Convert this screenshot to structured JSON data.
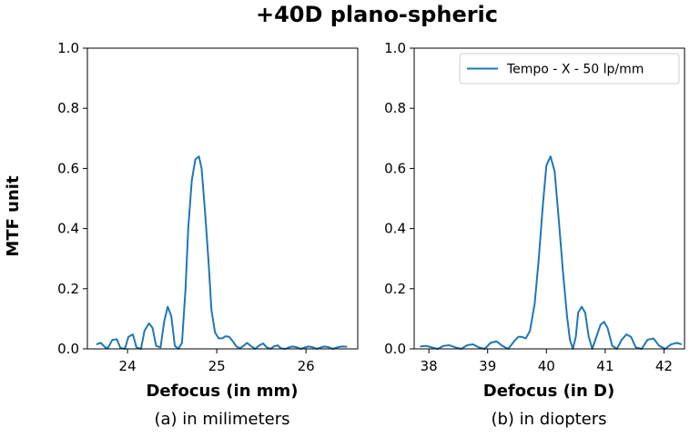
{
  "title": "+40D plano-spheric",
  "shared_ylabel": "MTF unit",
  "legend_label": "Tempo - X - 50 lp/mm",
  "series_color": "#1f77b4",
  "chart_data": [
    {
      "type": "line",
      "caption": "(a) in milimeters",
      "xlabel": "Defocus (in mm)",
      "ylabel": "MTF unit",
      "xlim": [
        23.55,
        26.58
      ],
      "ylim": [
        0,
        1
      ],
      "xticks": [
        24,
        25,
        26
      ],
      "yticks": [
        0.0,
        0.2,
        0.4,
        0.6,
        0.8,
        1.0
      ],
      "series": [
        {
          "name": "Tempo - X - 50 lp/mm",
          "x": [
            23.65,
            23.7,
            23.75,
            23.78,
            23.83,
            23.88,
            23.92,
            23.97,
            24.01,
            24.06,
            24.1,
            24.15,
            24.19,
            24.24,
            24.28,
            24.32,
            24.37,
            24.41,
            24.45,
            24.49,
            24.53,
            24.57,
            24.61,
            24.65,
            24.68,
            24.72,
            24.76,
            24.8,
            24.83,
            24.87,
            24.91,
            24.94,
            24.98,
            25.02,
            25.06,
            25.1,
            25.14,
            25.18,
            25.22,
            25.26,
            25.3,
            25.34,
            25.38,
            25.43,
            25.48,
            25.52,
            25.56,
            25.6,
            25.64,
            25.68,
            25.72,
            25.77,
            25.81,
            25.85,
            25.9,
            25.94,
            25.99,
            26.03,
            26.08,
            26.12,
            26.17,
            26.21,
            26.26,
            26.3,
            26.35,
            26.4,
            26.46
          ],
          "y": [
            0.015,
            0.02,
            0.005,
            0.003,
            0.03,
            0.032,
            0.003,
            0.0,
            0.04,
            0.048,
            0.005,
            0.0,
            0.06,
            0.085,
            0.07,
            0.01,
            0.005,
            0.09,
            0.14,
            0.11,
            0.01,
            0.0,
            0.02,
            0.2,
            0.4,
            0.56,
            0.63,
            0.64,
            0.6,
            0.45,
            0.28,
            0.13,
            0.055,
            0.035,
            0.035,
            0.042,
            0.04,
            0.025,
            0.008,
            0.002,
            0.01,
            0.02,
            0.01,
            0.0,
            0.012,
            0.018,
            0.005,
            0.0,
            0.008,
            0.012,
            0.002,
            0.0,
            0.005,
            0.008,
            0.005,
            0.0,
            0.005,
            0.008,
            0.005,
            0.0,
            0.005,
            0.008,
            0.005,
            0.0,
            0.005,
            0.008,
            0.007
          ]
        }
      ]
    },
    {
      "type": "line",
      "caption": "(b) in diopters",
      "xlabel": "Defocus (in D)",
      "ylabel": "",
      "xlim": [
        37.75,
        42.35
      ],
      "ylim": [
        0,
        1
      ],
      "xticks": [
        38,
        39,
        40,
        41,
        42
      ],
      "yticks": [
        0.0,
        0.2,
        0.4,
        0.6,
        0.8,
        1.0
      ],
      "legend": "top-right",
      "series": [
        {
          "name": "Tempo - X - 50 lp/mm",
          "x": [
            37.85,
            37.95,
            38.05,
            38.15,
            38.25,
            38.35,
            38.45,
            38.55,
            38.65,
            38.75,
            38.85,
            38.95,
            39.05,
            39.15,
            39.25,
            39.35,
            39.45,
            39.52,
            39.58,
            39.65,
            39.72,
            39.8,
            39.87,
            39.94,
            40.0,
            40.07,
            40.14,
            40.21,
            40.28,
            40.35,
            40.4,
            40.45,
            40.5,
            40.54,
            40.6,
            40.66,
            40.72,
            40.78,
            40.85,
            40.92,
            40.98,
            41.04,
            41.12,
            41.2,
            41.28,
            41.36,
            41.44,
            41.52,
            41.62,
            41.72,
            41.82,
            41.92,
            42.02,
            42.12,
            42.22,
            42.3
          ],
          "y": [
            0.008,
            0.01,
            0.005,
            0.0,
            0.01,
            0.012,
            0.005,
            0.0,
            0.012,
            0.015,
            0.005,
            0.0,
            0.02,
            0.025,
            0.01,
            0.0,
            0.025,
            0.04,
            0.04,
            0.035,
            0.06,
            0.15,
            0.3,
            0.48,
            0.61,
            0.64,
            0.59,
            0.43,
            0.26,
            0.11,
            0.03,
            0.0,
            0.04,
            0.12,
            0.14,
            0.12,
            0.04,
            0.0,
            0.04,
            0.08,
            0.09,
            0.07,
            0.01,
            0.0,
            0.03,
            0.048,
            0.04,
            0.005,
            0.0,
            0.03,
            0.035,
            0.01,
            0.0,
            0.015,
            0.02,
            0.015
          ]
        }
      ]
    }
  ]
}
